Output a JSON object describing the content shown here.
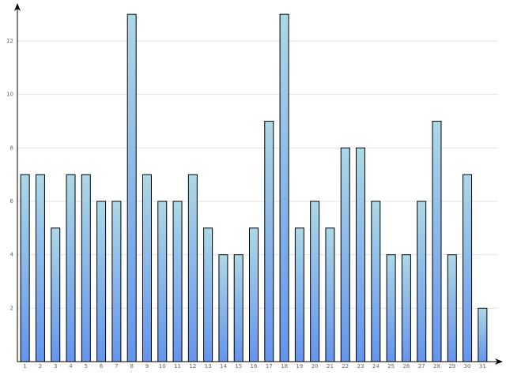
{
  "chart_data": {
    "type": "bar",
    "categories": [
      "1",
      "2",
      "3",
      "4",
      "5",
      "6",
      "7",
      "8",
      "9",
      "10",
      "11",
      "12",
      "13",
      "14",
      "15",
      "16",
      "17",
      "18",
      "19",
      "20",
      "21",
      "22",
      "23",
      "24",
      "25",
      "26",
      "27",
      "28",
      "29",
      "30",
      "31"
    ],
    "values": [
      7,
      7,
      5,
      7,
      7,
      6,
      6,
      13,
      7,
      6,
      6,
      7,
      5,
      4,
      4,
      5,
      9,
      13,
      5,
      6,
      5,
      8,
      8,
      6,
      4,
      4,
      6,
      9,
      4,
      7,
      2
    ],
    "color": [
      "#add8e6",
      "#6495ed"
    ],
    "ylim": [
      0,
      13.4
    ],
    "yticks": [
      2,
      4,
      6,
      8,
      10,
      12
    ],
    "grid": true
  }
}
